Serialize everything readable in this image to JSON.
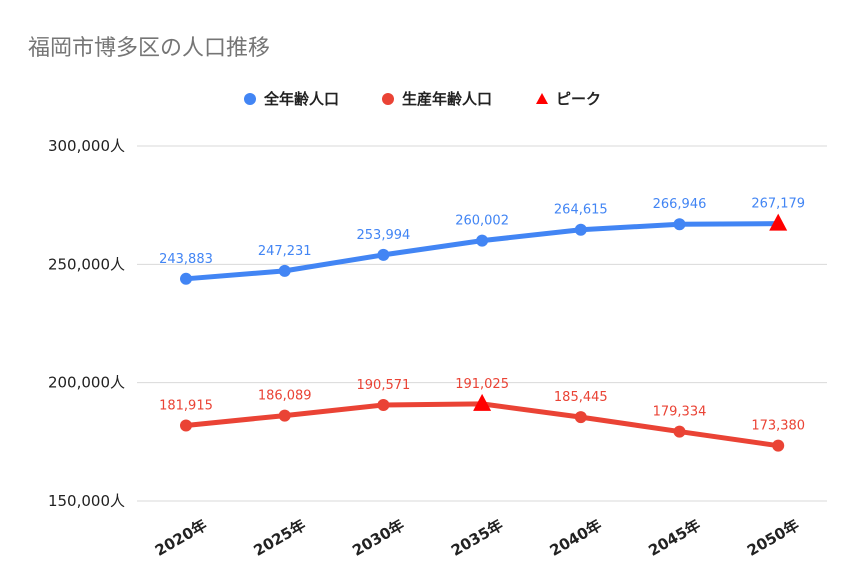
{
  "chart_data": {
    "type": "line",
    "title": "福岡市博多区の人口推移",
    "categories": [
      "2020年",
      "2025年",
      "2030年",
      "2035年",
      "2040年",
      "2045年",
      "2050年"
    ],
    "ylim": [
      150000,
      300000
    ],
    "yticks": [
      150000,
      200000,
      250000,
      300000
    ],
    "ytick_labels": [
      "150,000人",
      "200,000人",
      "250,000人",
      "300,000人"
    ],
    "grid": true,
    "legend_position": "top-center",
    "series": [
      {
        "name": "全年齢人口",
        "color": "#4285f4",
        "values": [
          243883,
          247231,
          253994,
          260002,
          264615,
          266946,
          267179
        ],
        "labels": [
          "243,883",
          "247,231",
          "253,994",
          "260,002",
          "264,615",
          "266,946",
          "267,179"
        ],
        "peak_index": 6
      },
      {
        "name": "生産年齢人口",
        "color": "#ea4335",
        "values": [
          181915,
          186089,
          190571,
          191025,
          185445,
          179334,
          173380
        ],
        "labels": [
          "181,915",
          "186,089",
          "190,571",
          "191,025",
          "185,445",
          "179,334",
          "173,380"
        ],
        "peak_index": 3
      }
    ],
    "peak_marker": {
      "name": "ピーク",
      "color": "#ff0000",
      "icon": "triangle-icon"
    }
  }
}
